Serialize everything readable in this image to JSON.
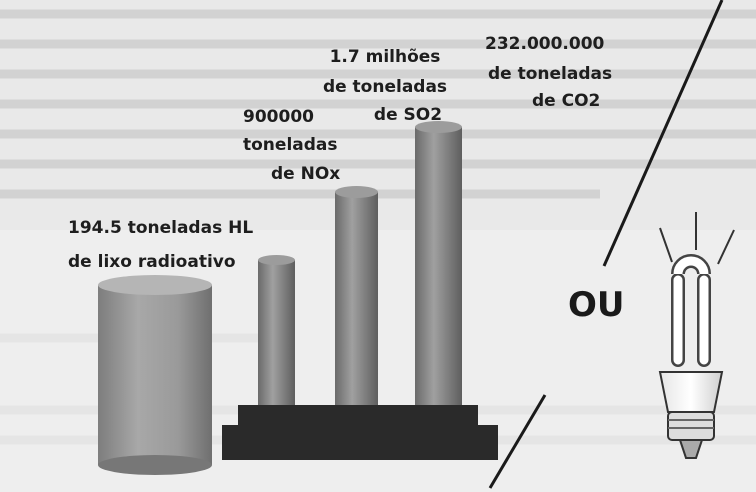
{
  "labels": [
    {
      "lines": [
        "194.5 toneladas HL",
        "de lixo radioativo"
      ]
    },
    {
      "lines": [
        "900000",
        "toneladas",
        "de NOx"
      ]
    },
    {
      "lines": [
        "1.7 milhões",
        "de toneladas",
        "de SO2"
      ]
    },
    {
      "lines": [
        "232.000.000",
        "de toneladas",
        "de CO2"
      ]
    }
  ],
  "separator": "OU"
}
